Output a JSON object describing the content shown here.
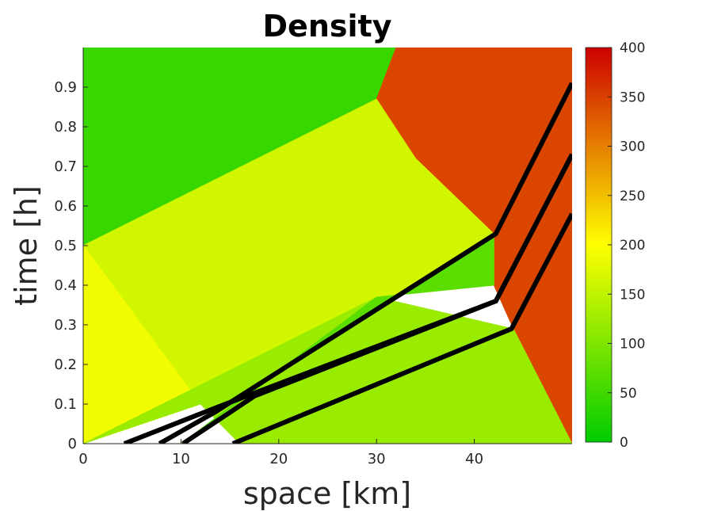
{
  "chart_data": {
    "type": "heatmap",
    "title": "Density",
    "xlabel": "space [km]",
    "ylabel": "time [h]",
    "xlim": [
      0,
      50
    ],
    "ylim": [
      0,
      1
    ],
    "xticks": [
      "0",
      "10",
      "20",
      "30",
      "40"
    ],
    "xtick_values": [
      0,
      10,
      20,
      30,
      40
    ],
    "yticks": [
      "0",
      "0.1",
      "0.2",
      "0.3",
      "0.4",
      "0.5",
      "0.6",
      "0.7",
      "0.8",
      "0.9"
    ],
    "ytick_values": [
      0,
      0.1,
      0.2,
      0.3,
      0.4,
      0.5,
      0.6,
      0.7,
      0.8,
      0.9
    ],
    "colorbar": {
      "range": [
        0,
        400
      ],
      "ticks": [
        "0",
        "50",
        "100",
        "150",
        "200",
        "250",
        "300",
        "350",
        "400"
      ],
      "tick_values": [
        0,
        50,
        100,
        150,
        200,
        250,
        300,
        350,
        400
      ],
      "colormap": [
        "#00cc00",
        "#ffff00",
        "#cc0000"
      ]
    },
    "regions": [
      {
        "density": 45,
        "polygon": [
          [
            0,
            0.5
          ],
          [
            30,
            0.87
          ],
          [
            32,
            1
          ],
          [
            0,
            1
          ]
        ]
      },
      {
        "density": 345,
        "polygon": [
          [
            32,
            1
          ],
          [
            30,
            0.87
          ],
          [
            34,
            0.72
          ],
          [
            42,
            0.53
          ],
          [
            42,
            0.4
          ],
          [
            44,
            0.29
          ],
          [
            50,
            0
          ],
          [
            50,
            1
          ]
        ]
      },
      {
        "density": 165,
        "polygon": [
          [
            0,
            0.5
          ],
          [
            30,
            0.87
          ],
          [
            34,
            0.72
          ],
          [
            42,
            0.53
          ],
          [
            42,
            0.4
          ],
          [
            30,
            0.37
          ],
          [
            12,
            0.1
          ],
          [
            0,
            0
          ]
        ]
      },
      {
        "density": 190,
        "polygon": [
          [
            0,
            0
          ],
          [
            12,
            0.1
          ],
          [
            0,
            0.5
          ]
        ]
      },
      {
        "density": 120,
        "polygon": [
          [
            0,
            0
          ],
          [
            12,
            0.1
          ],
          [
            16,
            0
          ],
          [
            50,
            0
          ],
          [
            44,
            0.29
          ],
          [
            30,
            0.37
          ]
        ]
      },
      {
        "density": 70,
        "polygon": [
          [
            10,
            0
          ],
          [
            30,
            0.37
          ],
          [
            42,
            0.4
          ],
          [
            42,
            0.53
          ],
          [
            24,
            0.25
          ]
        ]
      }
    ],
    "trajectories": [
      {
        "points": [
          [
            4.2,
            0
          ],
          [
            13.5,
            0.09
          ],
          [
            42.2,
            0.36
          ],
          [
            50,
            0.73
          ]
        ]
      },
      {
        "points": [
          [
            7.8,
            0
          ],
          [
            13.5,
            0.08
          ],
          [
            42.2,
            0.53
          ],
          [
            50,
            0.91
          ]
        ]
      },
      {
        "points": [
          [
            10.2,
            0
          ],
          [
            17.5,
            0.12
          ],
          [
            42.2,
            0.36
          ],
          [
            50,
            0.73
          ]
        ]
      },
      {
        "points": [
          [
            15.3,
            0
          ],
          [
            43.8,
            0.29
          ],
          [
            50,
            0.58
          ]
        ]
      }
    ]
  }
}
